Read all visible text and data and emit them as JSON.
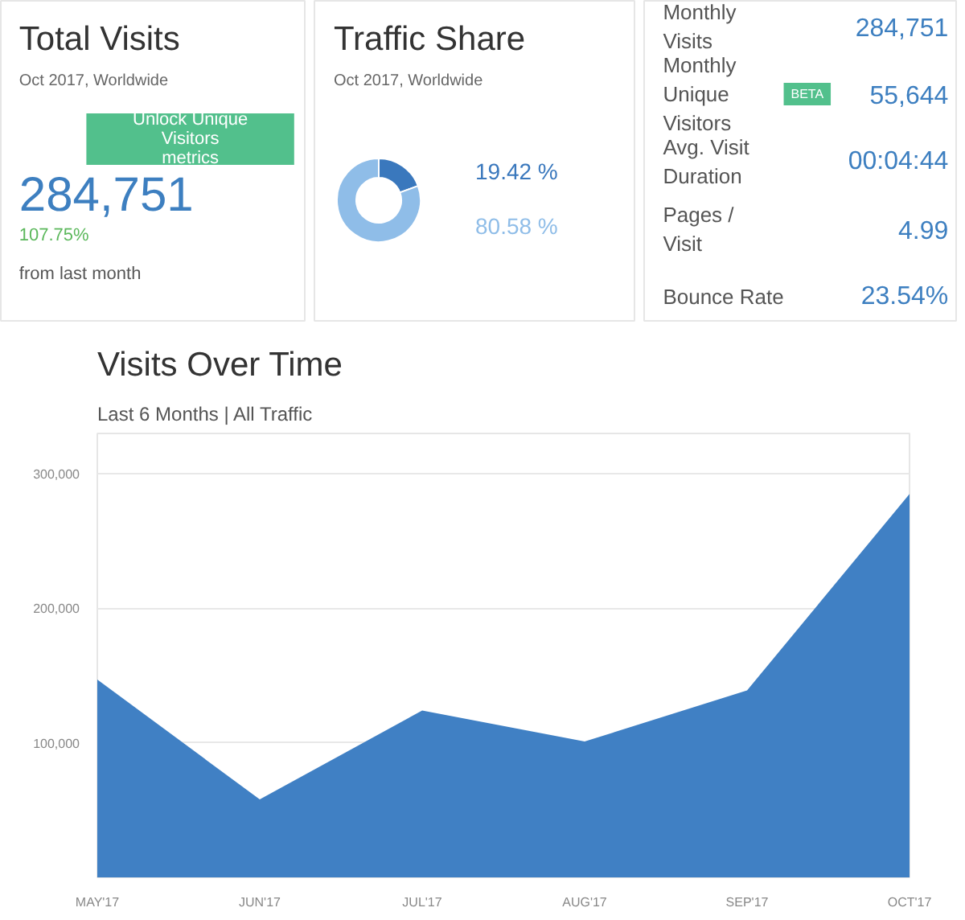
{
  "chart_data": [
    {
      "type": "other",
      "title": "Total Visits",
      "subtitle": "Oct 2017, Worldwide",
      "annotations": [
        "284,751",
        "Unlock Unique Visitors metrics",
        "107.75%",
        "from last month"
      ]
    },
    {
      "type": "donut",
      "title": "Traffic Share",
      "subtitle": "Oct 2017, Worldwide",
      "categories": [
        null,
        null
      ],
      "values": [
        19.42,
        80.58
      ],
      "colors": [
        "#3a78bd",
        "#8fbde8"
      ],
      "value_labels": [
        "19.42 %",
        "80.58 %"
      ]
    },
    {
      "type": "other",
      "annotations": [
        "Monthly Visits",
        "284,751",
        "Monthly Unique Visitors",
        "55,644",
        "Avg. Visit Duration",
        "00:04:44",
        "Pages / Visit",
        "4.99",
        "Bounce Rate",
        "23.54%",
        "BETA"
      ]
    },
    {
      "type": "area",
      "title": "Visits Over Time",
      "subtitle": "Last 6 Months | All Traffic",
      "categories": [
        "MAY'17",
        "JUN'17",
        "JUL'17",
        "AUG'17",
        "SEP'17",
        "OCT'17"
      ],
      "values": [
        147000,
        58000,
        124000,
        101000,
        139000,
        285000
      ],
      "color": "#4080c4",
      "ylim": [
        0,
        330000
      ],
      "yticks": [
        {
          "value": 100000,
          "label": "100,000"
        },
        {
          "value": 200000,
          "label": "200,000"
        },
        {
          "value": 300000,
          "label": "300,000"
        }
      ],
      "grid": "y"
    }
  ]
}
